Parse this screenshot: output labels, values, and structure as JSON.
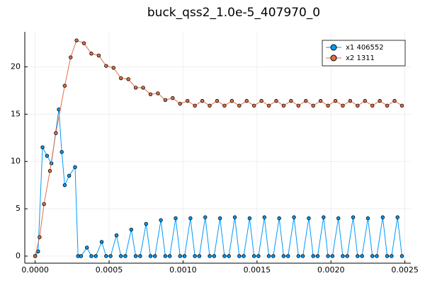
{
  "chart_data": {
    "type": "line",
    "title": "buck_qss2_1.0e-5_407970_0",
    "xlim": [
      -7e-05,
      0.00254
    ],
    "ylim": [
      -0.75,
      23.7
    ],
    "xticks": [
      {
        "value": 0,
        "label": "0.0000"
      },
      {
        "value": 0.0005,
        "label": "0.0005"
      },
      {
        "value": 0.001,
        "label": "0.0010"
      },
      {
        "value": 0.0015,
        "label": "0.0015"
      },
      {
        "value": 0.002,
        "label": "0.0020"
      },
      {
        "value": 0.0025,
        "label": "0.0025"
      }
    ],
    "yticks": [
      0,
      5,
      10,
      15,
      20
    ],
    "grid": true,
    "legend": "top-right",
    "series": [
      {
        "name": "x1 406552",
        "color": "#009afa",
        "x": [
          0,
          2e-05,
          5e-05,
          8e-05,
          0.00011,
          0.00016,
          0.00018,
          0.0002,
          0.00023,
          0.00027,
          0.00029,
          0.00031,
          0.00035,
          0.00038,
          0.00041,
          0.00045,
          0.00048,
          0.00051,
          0.00055,
          0.00058,
          0.00061,
          0.00065,
          0.00068,
          0.00071,
          0.00075,
          0.00078,
          0.00081,
          0.00085,
          0.00088,
          0.00091,
          0.00095,
          0.00098,
          0.00101,
          0.00105,
          0.00108,
          0.00111,
          0.00115,
          0.00118,
          0.00121,
          0.00125,
          0.00128,
          0.00131,
          0.00135,
          0.00138,
          0.00141,
          0.00145,
          0.00148,
          0.00151,
          0.00155,
          0.00158,
          0.00161,
          0.00165,
          0.00168,
          0.00171,
          0.00175,
          0.00178,
          0.00181,
          0.00185,
          0.00188,
          0.00191,
          0.00195,
          0.00198,
          0.00201,
          0.00205,
          0.00208,
          0.00211,
          0.00215,
          0.00218,
          0.00221,
          0.00225,
          0.00228,
          0.00231,
          0.00235,
          0.00238,
          0.00241,
          0.00245,
          0.00248
        ],
        "values": [
          0,
          0.5,
          11.5,
          10.6,
          9.8,
          15.5,
          11,
          7.5,
          8.5,
          9.4,
          0,
          0,
          0.9,
          0,
          0,
          1.5,
          0,
          0,
          2.2,
          0,
          0,
          2.8,
          0,
          0,
          3.4,
          0,
          0,
          3.8,
          0,
          0,
          4.0,
          0,
          0,
          4.0,
          0,
          0,
          4.1,
          0,
          0,
          4.0,
          0,
          0,
          4.1,
          0,
          0,
          4.0,
          0,
          0,
          4.1,
          0,
          0,
          4.0,
          0,
          0,
          4.1,
          0,
          0,
          4.0,
          0,
          0,
          4.1,
          0,
          0,
          4.0,
          0,
          0,
          4.1,
          0,
          0,
          4.0,
          0,
          0,
          4.1,
          0,
          0,
          4.1,
          0
        ]
      },
      {
        "name": "x2 1311",
        "color": "#e26f46",
        "x": [
          0,
          3e-05,
          6e-05,
          0.0001,
          0.00014,
          0.0002,
          0.00024,
          0.00028,
          0.00033,
          0.00038,
          0.00043,
          0.00048,
          0.00053,
          0.00058,
          0.00063,
          0.00068,
          0.00073,
          0.00078,
          0.00083,
          0.00088,
          0.00093,
          0.00098,
          0.00103,
          0.00108,
          0.00113,
          0.00118,
          0.00123,
          0.00128,
          0.00133,
          0.00138,
          0.00143,
          0.00148,
          0.00153,
          0.00158,
          0.00163,
          0.00168,
          0.00173,
          0.00178,
          0.00183,
          0.00188,
          0.00193,
          0.00198,
          0.00203,
          0.00208,
          0.00213,
          0.00218,
          0.00223,
          0.00228,
          0.00233,
          0.00238,
          0.00243,
          0.00248
        ],
        "values": [
          0,
          2,
          5.5,
          9,
          13,
          18,
          21,
          22.8,
          22.5,
          21.4,
          21.2,
          20.1,
          19.9,
          18.8,
          18.7,
          17.8,
          17.8,
          17.1,
          17.2,
          16.5,
          16.7,
          16.1,
          16.4,
          15.9,
          16.4,
          15.9,
          16.4,
          15.9,
          16.4,
          15.9,
          16.4,
          15.9,
          16.4,
          15.9,
          16.4,
          15.9,
          16.4,
          15.9,
          16.4,
          15.9,
          16.4,
          15.9,
          16.4,
          15.9,
          16.4,
          15.9,
          16.4,
          15.9,
          16.4,
          15.9,
          16.4,
          15.9
        ]
      }
    ]
  }
}
